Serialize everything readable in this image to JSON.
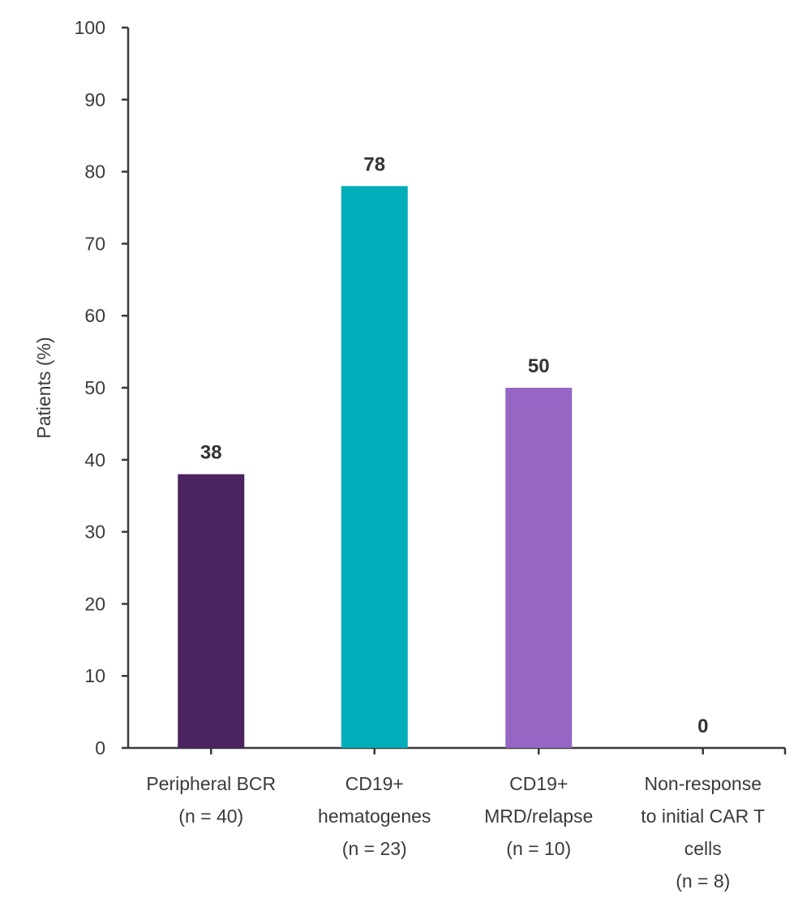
{
  "chart_data": {
    "type": "bar",
    "title": "",
    "xlabel": "",
    "ylabel": "Patients (%)",
    "ylim": [
      0,
      100
    ],
    "yticks": [
      0,
      10,
      20,
      30,
      40,
      50,
      60,
      70,
      80,
      90,
      100
    ],
    "grid": false,
    "legend": "none",
    "categories": [
      [
        "Peripheral BCR",
        "(n = 40)"
      ],
      [
        "CD19+",
        "hematogenes",
        "(n = 23)"
      ],
      [
        "CD19+",
        "MRD/relapse",
        "(n = 10)"
      ],
      [
        "Non-response",
        "to initial CAR T",
        "cells",
        "(n = 8)"
      ]
    ],
    "values": [
      38,
      78,
      50,
      0
    ],
    "data_labels": [
      "38",
      "78",
      "50",
      "0"
    ],
    "colors": [
      "#4a235f",
      "#00adb8",
      "#9566c4",
      "#4a235f"
    ],
    "axis_color": "#3a3a3a"
  }
}
